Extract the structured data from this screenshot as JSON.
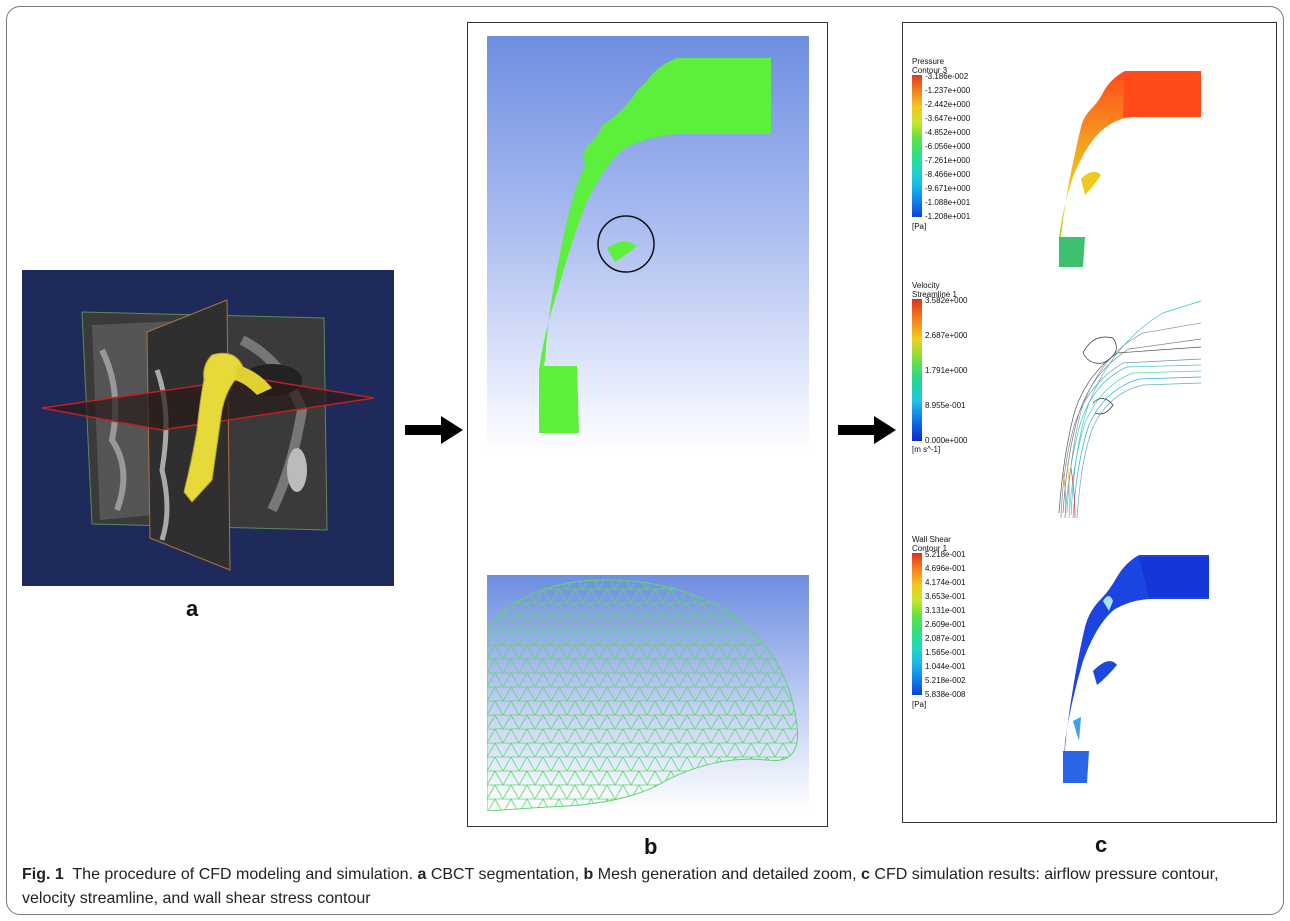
{
  "panels": {
    "a": {
      "letter": "a"
    },
    "b": {
      "letter": "b"
    },
    "c": {
      "letter": "c"
    }
  },
  "legends": {
    "pressure": {
      "title_line1": "Pressure",
      "title_line2": "Contour 3",
      "labels": [
        "-3.186e-002",
        "-1.237e+000",
        "-2.442e+000",
        "-3.647e+000",
        "-4.852e+000",
        "-6.056e+000",
        "-7.261e+000",
        "-8.466e+000",
        "-9.671e+000",
        "-1.088e+001",
        "-1.208e+001"
      ],
      "unit": "[Pa]"
    },
    "velocity": {
      "title_line1": "Velocity",
      "title_line2": "Streamline 1",
      "labels": [
        "3.582e+000",
        "2.687e+000",
        "1.791e+000",
        "8.955e-001",
        "0.000e+000"
      ],
      "unit": "[m s^-1]"
    },
    "wall_shear": {
      "title_line1": "Wall Shear",
      "title_line2": "Contour 1",
      "labels": [
        "5.218e-001",
        "4.696e-001",
        "4.174e-001",
        "3.653e-001",
        "3.131e-001",
        "2.609e-001",
        "2.087e-001",
        "1.565e-001",
        "1.044e-001",
        "5.218e-002",
        "5.838e-008"
      ],
      "unit": "[Pa]"
    }
  },
  "caption": {
    "fig_label": "Fig. 1",
    "text_intro": "The procedure of CFD modeling and simulation.",
    "a_label": "a",
    "a_text": "CBCT segmentation,",
    "b_label": "b",
    "b_text": "Mesh generation and detailed zoom,",
    "c_label": "c",
    "c_text": "CFD simulation results: airflow pressure contour, velocity streamline, and wall shear stress contour"
  },
  "colors": {
    "panel_a_bg": "#1e2b5a",
    "mesh_green": "#5cf03c",
    "arrow": "#000000"
  }
}
